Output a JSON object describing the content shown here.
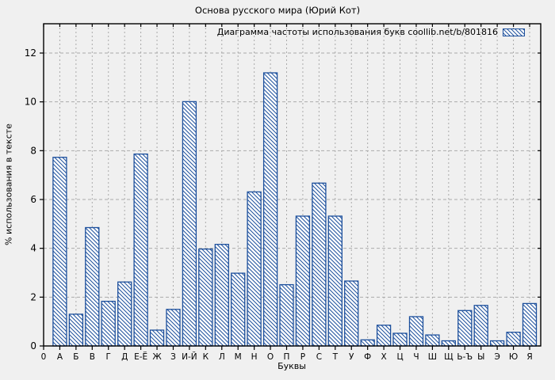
{
  "title": "Основа русского мира (Юрий Кот)",
  "legend": {
    "label": "Диаграмма частоты использования букв coollib.net/b/801816"
  },
  "axes": {
    "ylabel": "% использования в тексте",
    "xlabel": "Буквы",
    "origin_label": "0"
  },
  "colors": {
    "background": "#f0f0f0",
    "bar_outline": "#1c4f9c",
    "bar_fill": "#ffffff",
    "hatch": "#1c4f9c",
    "grid": "#aaaaaa",
    "axis": "#000000",
    "text": "#000000"
  },
  "chart_data": {
    "type": "bar",
    "title": "Основа русского мира (Юрий Кот)",
    "xlabel": "Буквы",
    "ylabel": "% использования в тексте",
    "legend_entry": "Диаграмма частоты использования букв coollib.net/b/801816",
    "legend_position": "top-right",
    "grid": true,
    "bar_style": "diagonal-hatch",
    "ylim": [
      0,
      13.2
    ],
    "yticks": [
      0,
      2,
      4,
      6,
      8,
      10,
      12
    ],
    "x_origin_label": "0",
    "categories": [
      "А",
      "Б",
      "В",
      "Г",
      "Д",
      "Е-Ё",
      "Ж",
      "З",
      "И-Й",
      "К",
      "Л",
      "М",
      "Н",
      "О",
      "П",
      "Р",
      "С",
      "Т",
      "У",
      "Ф",
      "Х",
      "Ц",
      "Ч",
      "Ш",
      "Щ",
      "Ь-Ъ",
      "Ы",
      "Э",
      "Ю",
      "Я"
    ],
    "values": [
      7.73,
      1.3,
      4.85,
      1.83,
      2.62,
      7.86,
      0.65,
      1.5,
      10.01,
      3.97,
      4.16,
      2.98,
      6.31,
      11.19,
      2.51,
      5.32,
      6.67,
      5.32,
      2.66,
      0.25,
      0.85,
      0.52,
      1.2,
      0.45,
      0.21,
      1.45,
      1.66,
      0.21,
      0.56,
      1.74
    ]
  }
}
